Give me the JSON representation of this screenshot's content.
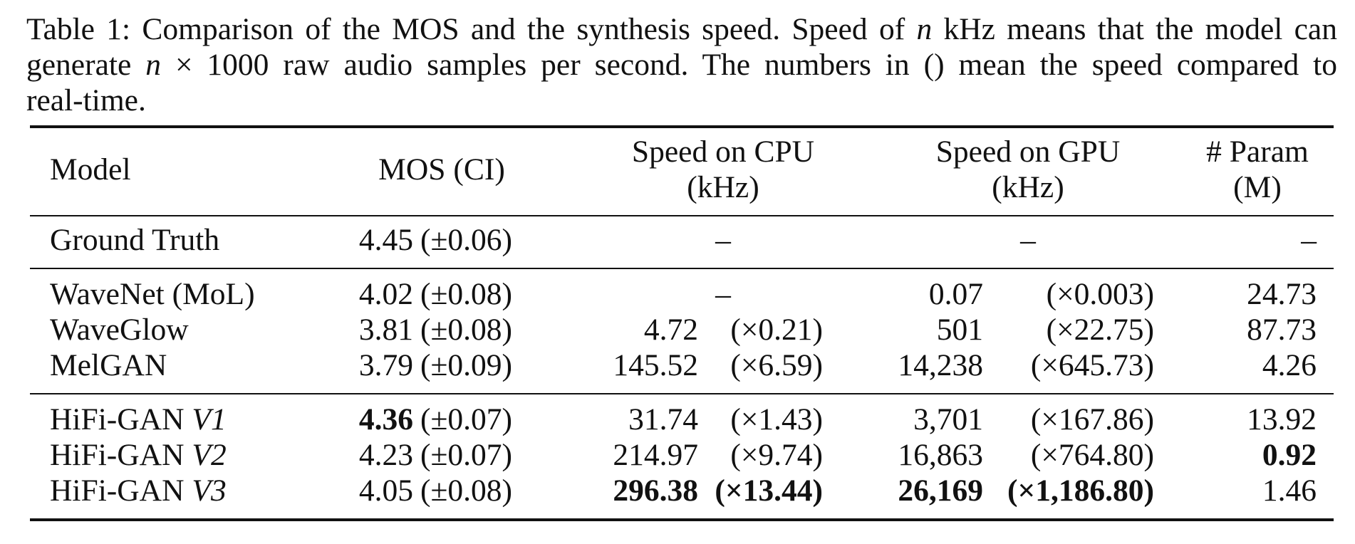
{
  "caption": {
    "line1_a": "Table 1: Comparison of the MOS and the synthesis speed. Speed of ",
    "line1_math": "n",
    "line1_b": " kHz means that the model can",
    "line2_a": "generate ",
    "line2_math": "n",
    "line2_b": " × 1000 raw audio samples per second. The numbers in () mean the speed compared to",
    "line3": "real-time."
  },
  "header": {
    "model": "Model",
    "mos": "MOS (CI)",
    "cpu_1": "Speed on CPU",
    "cpu_2": "(kHz)",
    "gpu_1": "Speed on GPU",
    "gpu_2": "(kHz)",
    "param_1": "# Param",
    "param_2": "(M)"
  },
  "rows": [
    {
      "model": "Ground Truth",
      "model_var": "",
      "mos_val": "4.45",
      "mos_ci": "(±0.06)",
      "cpu_speed": "",
      "cpu_rt": "",
      "cpu_dash": "–",
      "gpu_speed": "",
      "gpu_rt": "",
      "gpu_dash": "–",
      "param": "–"
    },
    {
      "model": "WaveNet (MoL)",
      "model_var": "",
      "mos_val": "4.02",
      "mos_ci": "(±0.08)",
      "cpu_speed": "",
      "cpu_rt": "",
      "cpu_dash": "–",
      "gpu_speed": "0.07",
      "gpu_rt": "(×0.003)",
      "gpu_dash": "",
      "param": "24.73"
    },
    {
      "model": "WaveGlow",
      "model_var": "",
      "mos_val": "3.81",
      "mos_ci": "(±0.08)",
      "cpu_speed": "4.72",
      "cpu_rt": "(×0.21)",
      "cpu_dash": "",
      "gpu_speed": "501",
      "gpu_rt": "(×22.75)",
      "gpu_dash": "",
      "param": "87.73"
    },
    {
      "model": "MelGAN",
      "model_var": "",
      "mos_val": "3.79",
      "mos_ci": "(±0.09)",
      "cpu_speed": "145.52",
      "cpu_rt": "(×6.59)",
      "cpu_dash": "",
      "gpu_speed": "14,238",
      "gpu_rt": "(×645.73)",
      "gpu_dash": "",
      "param": "4.26"
    },
    {
      "model": "HiFi-GAN ",
      "model_var": "V1",
      "mos_val": "4.36",
      "mos_ci": "(±0.07)",
      "cpu_speed": "31.74",
      "cpu_rt": "(×1.43)",
      "cpu_dash": "",
      "gpu_speed": "3,701",
      "gpu_rt": "(×167.86)",
      "gpu_dash": "",
      "param": "13.92"
    },
    {
      "model": "HiFi-GAN ",
      "model_var": "V2",
      "mos_val": "4.23",
      "mos_ci": "(±0.07)",
      "cpu_speed": "214.97",
      "cpu_rt": "(×9.74)",
      "cpu_dash": "",
      "gpu_speed": "16,863",
      "gpu_rt": "(×764.80)",
      "gpu_dash": "",
      "param": "0.92"
    },
    {
      "model": "HiFi-GAN ",
      "model_var": "V3",
      "mos_val": "4.05",
      "mos_ci": "(±0.08)",
      "cpu_speed": "296.38",
      "cpu_rt": "(×13.44)",
      "cpu_dash": "",
      "gpu_speed": "26,169",
      "gpu_rt": "(×1,186.80)",
      "gpu_dash": "",
      "param": "1.46"
    }
  ],
  "emphasis": {
    "bold_mos_row": 4,
    "bold_param_row": 5,
    "bold_speed_row": 6
  }
}
